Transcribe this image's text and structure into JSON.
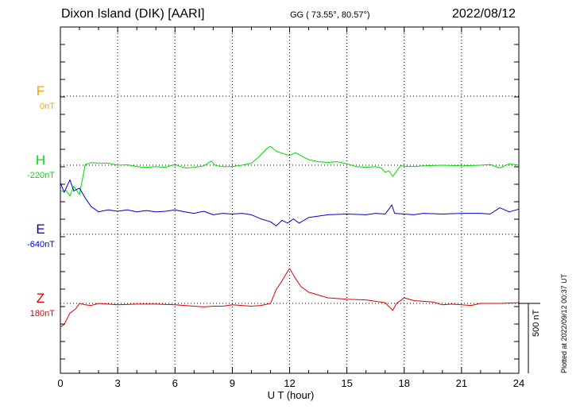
{
  "header": {
    "station": "Dixon Island (DIK)  [AARI]",
    "coords": "GG ( 73.55°,  80.57°)",
    "date": "2022/08/12"
  },
  "plotted_note": "Plotted at 2022/09/12 00:37 UT",
  "chart_data": {
    "type": "line",
    "xlabel": "U T (hour)",
    "xlim": [
      0,
      24
    ],
    "xticks": [
      "0",
      "3",
      "6",
      "9",
      "12",
      "15",
      "18",
      "21",
      "24"
    ],
    "scale_bar": "500 nT",
    "channels": [
      {
        "name": "F",
        "baseline": "0nT",
        "color": "#f0a800"
      },
      {
        "name": "H",
        "baseline": "-220nT",
        "color": "#00dd00"
      },
      {
        "name": "E",
        "baseline": "-640nT",
        "color": "#0000cc"
      },
      {
        "name": "Z",
        "baseline": "180nT",
        "color": "#dd0000"
      }
    ],
    "series": [
      {
        "name": "H",
        "color": "#00dd00",
        "x": [
          0,
          0.3,
          0.5,
          0.7,
          1.0,
          1.3,
          1.6,
          2.0,
          2.5,
          3.0,
          3.5,
          4.0,
          4.5,
          5.0,
          5.5,
          6.0,
          6.3,
          6.6,
          7.0,
          7.5,
          7.9,
          8.1,
          8.4,
          9.0,
          9.5,
          10.0,
          10.4,
          10.8,
          11.0,
          11.3,
          11.6,
          12.0,
          12.3,
          12.7,
          13.0,
          13.5,
          14.0,
          14.5,
          15.0,
          15.5,
          16.0,
          16.5,
          16.8,
          17.0,
          17.2,
          17.4,
          17.8,
          18.5,
          19.0,
          20.0,
          21.0,
          22.0,
          22.5,
          23.0,
          23.5,
          24.0
        ],
        "values": [
          -190,
          -180,
          -220,
          -150,
          -210,
          5,
          18,
          15,
          15,
          0,
          3,
          -10,
          -15,
          -10,
          -15,
          5,
          -10,
          -20,
          -15,
          -5,
          30,
          0,
          -10,
          -10,
          0,
          15,
          60,
          120,
          135,
          100,
          85,
          70,
          90,
          60,
          40,
          25,
          20,
          25,
          10,
          -10,
          -15,
          -10,
          -20,
          -50,
          -40,
          -80,
          -5,
          -10,
          -5,
          0,
          -5,
          0,
          5,
          -20,
          10,
          0
        ]
      },
      {
        "name": "E",
        "color": "#0000cc",
        "x": [
          0,
          0.2,
          0.5,
          0.7,
          1.0,
          1.3,
          1.6,
          2.0,
          2.5,
          3.0,
          3.5,
          4.0,
          4.5,
          5.0,
          5.5,
          6.0,
          6.5,
          7.0,
          7.5,
          8.0,
          8.5,
          9.0,
          9.5,
          10.0,
          10.5,
          11.0,
          11.3,
          11.6,
          11.9,
          12.2,
          12.5,
          13.0,
          13.5,
          14.0,
          15.0,
          16.0,
          16.5,
          17.0,
          17.2,
          17.35,
          17.5,
          18.0,
          18.5,
          19.0,
          20.0,
          21.0,
          22.0,
          22.5,
          23.0,
          23.5,
          24.0
        ],
        "values": [
          370,
          300,
          390,
          310,
          330,
          260,
          200,
          160,
          175,
          165,
          175,
          160,
          170,
          160,
          165,
          175,
          160,
          150,
          165,
          140,
          150,
          145,
          150,
          140,
          110,
          90,
          60,
          100,
          80,
          110,
          80,
          120,
          130,
          140,
          145,
          140,
          150,
          145,
          180,
          210,
          150,
          145,
          140,
          150,
          145,
          150,
          150,
          145,
          190,
          160,
          180
        ]
      },
      {
        "name": "Z",
        "color": "#dd0000",
        "x": [
          0,
          0.2,
          0.5,
          0.8,
          1.0,
          1.3,
          1.6,
          2.0,
          3.0,
          4.0,
          5.0,
          6.0,
          7.0,
          7.5,
          8.0,
          8.5,
          9.0,
          9.5,
          10.0,
          10.5,
          11.0,
          11.3,
          11.6,
          11.9,
          12.0,
          12.3,
          12.6,
          13.0,
          14.0,
          15.0,
          16.0,
          17.0,
          17.4,
          17.6,
          18.0,
          18.5,
          19.0,
          19.5,
          20.0,
          20.5,
          21.0,
          21.5,
          22.0,
          23.0,
          24.0
        ],
        "values": [
          -170,
          -150,
          -70,
          -40,
          0,
          -10,
          -15,
          0,
          -10,
          -5,
          -5,
          -10,
          -20,
          -25,
          -20,
          -20,
          -10,
          -15,
          -20,
          -15,
          0,
          100,
          160,
          230,
          250,
          180,
          120,
          80,
          40,
          30,
          25,
          5,
          -50,
          0,
          40,
          20,
          15,
          10,
          -10,
          -5,
          -10,
          -15,
          0,
          0,
          5
        ]
      }
    ]
  }
}
